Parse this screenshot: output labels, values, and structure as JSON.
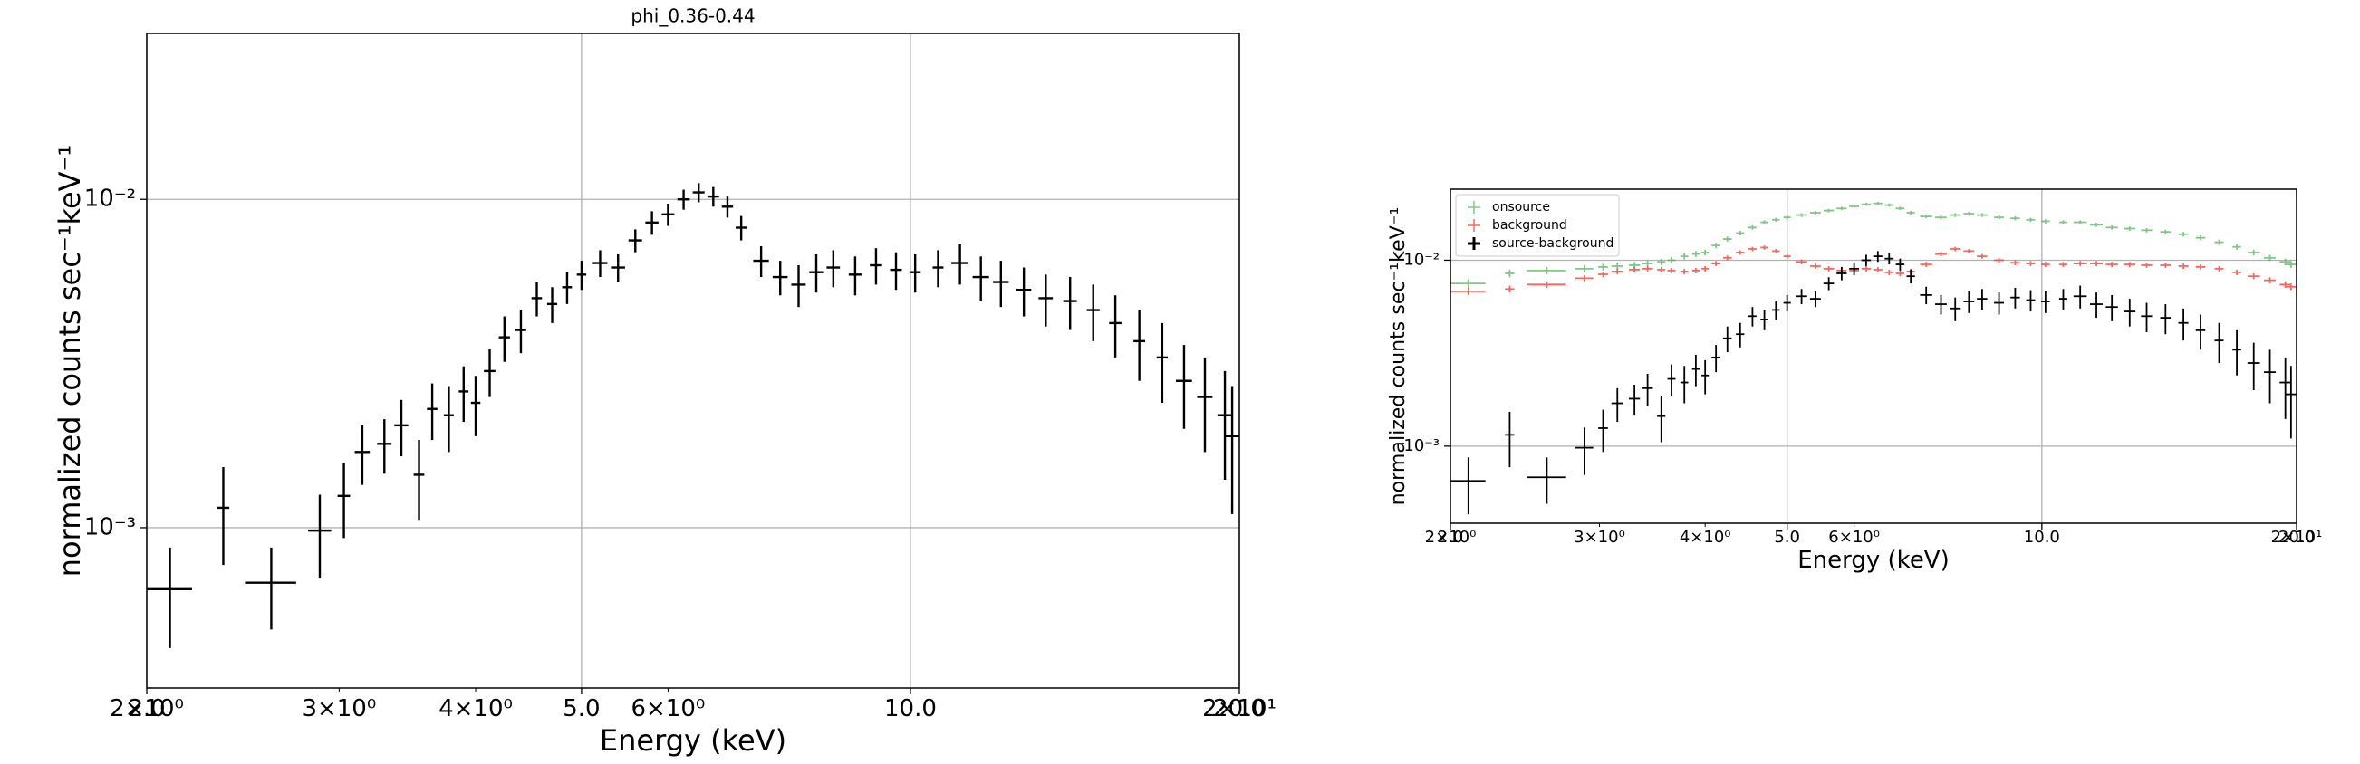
{
  "chart_data": [
    {
      "type": "errorbar",
      "title": "phi_0.36-0.44",
      "xlabel": "Energy (keV)",
      "ylabel": "normalized counts sec⁻¹keV⁻¹",
      "xscale": "log",
      "yscale": "log",
      "grid": true,
      "xlim": [
        2.0,
        20.0
      ],
      "ylim": [
        0.000325,
        0.032
      ],
      "xticks": [
        {
          "value": 2.0,
          "label": "2.0"
        },
        {
          "value": 5.0,
          "label": "5.0"
        },
        {
          "value": 10.0,
          "label": "10.0"
        },
        {
          "value": 20.0,
          "label": "20.0"
        }
      ],
      "xminorticks": [
        {
          "value": 2,
          "label": "2×10⁰"
        },
        {
          "value": 3,
          "label": "3×10⁰"
        },
        {
          "value": 4,
          "label": "4×10⁰"
        },
        {
          "value": 6,
          "label": "6×10⁰"
        },
        {
          "value": 20,
          "label": "2×10¹"
        }
      ],
      "yticks": [
        {
          "value": 0.001,
          "label": "10⁻³"
        },
        {
          "value": 0.01,
          "label": "10⁻²"
        }
      ],
      "x": [
        2.1,
        2.35,
        2.6,
        2.88,
        3.03,
        3.15,
        3.3,
        3.42,
        3.55,
        3.65,
        3.78,
        3.9,
        4.0,
        4.12,
        4.25,
        4.4,
        4.55,
        4.7,
        4.85,
        5.0,
        5.2,
        5.4,
        5.6,
        5.8,
        6.0,
        6.2,
        6.4,
        6.6,
        6.8,
        7.0,
        7.3,
        7.6,
        7.9,
        8.2,
        8.5,
        8.9,
        9.3,
        9.7,
        10.1,
        10.6,
        11.1,
        11.6,
        12.1,
        12.7,
        13.3,
        14.0,
        14.7,
        15.4,
        16.2,
        17.0,
        17.8,
        18.6,
        19.4,
        19.7
      ],
      "xerr": [
        0.1,
        0.03,
        0.14,
        0.07,
        0.04,
        0.05,
        0.05,
        0.05,
        0.04,
        0.04,
        0.04,
        0.04,
        0.04,
        0.05,
        0.05,
        0.05,
        0.05,
        0.05,
        0.05,
        0.05,
        0.08,
        0.08,
        0.08,
        0.08,
        0.08,
        0.08,
        0.08,
        0.08,
        0.08,
        0.08,
        0.12,
        0.12,
        0.12,
        0.12,
        0.12,
        0.12,
        0.12,
        0.12,
        0.12,
        0.12,
        0.2,
        0.2,
        0.2,
        0.2,
        0.2,
        0.2,
        0.2,
        0.2,
        0.2,
        0.2,
        0.3,
        0.3,
        0.3,
        0.3
      ],
      "series": [
        {
          "color": "#000000",
          "values": [
            0.00065,
            0.00115,
            0.00068,
            0.00098,
            0.00125,
            0.0017,
            0.0018,
            0.00205,
            0.00145,
            0.0023,
            0.0022,
            0.0026,
            0.0024,
            0.003,
            0.0038,
            0.004,
            0.005,
            0.0048,
            0.0054,
            0.0059,
            0.0064,
            0.0062,
            0.0075,
            0.0085,
            0.009,
            0.01,
            0.0105,
            0.0102,
            0.0095,
            0.0082,
            0.0065,
            0.0058,
            0.0055,
            0.006,
            0.0062,
            0.0059,
            0.0063,
            0.0061,
            0.006,
            0.0062,
            0.0064,
            0.0058,
            0.0056,
            0.0053,
            0.005,
            0.0049,
            0.0046,
            0.0042,
            0.0037,
            0.0033,
            0.0028,
            0.0025,
            0.0022,
            0.0019
          ],
          "errors": [
            0.00022,
            0.00038,
            0.00019,
            0.00028,
            0.00032,
            0.00035,
            0.00034,
            0.0004,
            0.0004,
            0.00045,
            0.0005,
            0.0005,
            0.0005,
            0.0005,
            0.0006,
            0.0006,
            0.0006,
            0.0006,
            0.0006,
            0.0006,
            0.0006,
            0.0006,
            0.0006,
            0.0007,
            0.0007,
            0.0007,
            0.0007,
            0.0007,
            0.0007,
            0.0007,
            0.0007,
            0.0007,
            0.0008,
            0.0008,
            0.0008,
            0.0008,
            0.0008,
            0.0008,
            0.0008,
            0.0008,
            0.0009,
            0.0009,
            0.0009,
            0.0009,
            0.0009,
            0.0009,
            0.0009,
            0.0009,
            0.0009,
            0.0009,
            0.0008,
            0.0008,
            0.0008,
            0.0008
          ]
        }
      ]
    },
    {
      "type": "errorbar",
      "xlabel": "Energy (keV)",
      "ylabel": "normalized counts sec⁻¹keV⁻¹",
      "xscale": "log",
      "yscale": "log",
      "grid": true,
      "legend": "upper left",
      "xlim": [
        2.0,
        20.0
      ],
      "ylim": [
        0.000385,
        0.0241
      ],
      "xticks": [
        {
          "value": 2.0,
          "label": "2.0"
        },
        {
          "value": 5.0,
          "label": "5.0"
        },
        {
          "value": 10.0,
          "label": "10.0"
        },
        {
          "value": 20.0,
          "label": "20.0"
        }
      ],
      "xminorticks": [
        {
          "value": 2,
          "label": "2×10⁰"
        },
        {
          "value": 3,
          "label": "3×10⁰"
        },
        {
          "value": 4,
          "label": "4×10⁰"
        },
        {
          "value": 6,
          "label": "6×10⁰"
        },
        {
          "value": 20,
          "label": "2×10¹"
        }
      ],
      "yticks": [
        {
          "value": 0.001,
          "label": "10⁻³"
        },
        {
          "value": 0.01,
          "label": "10⁻²"
        }
      ],
      "x": [
        2.1,
        2.35,
        2.6,
        2.88,
        3.03,
        3.15,
        3.3,
        3.42,
        3.55,
        3.65,
        3.78,
        3.9,
        4.0,
        4.12,
        4.25,
        4.4,
        4.55,
        4.7,
        4.85,
        5.0,
        5.2,
        5.4,
        5.6,
        5.8,
        6.0,
        6.2,
        6.4,
        6.6,
        6.8,
        7.0,
        7.3,
        7.6,
        7.9,
        8.2,
        8.5,
        8.9,
        9.3,
        9.7,
        10.1,
        10.6,
        11.1,
        11.6,
        12.1,
        12.7,
        13.3,
        14.0,
        14.7,
        15.4,
        16.2,
        17.0,
        17.8,
        18.6,
        19.4,
        19.7
      ],
      "xerr": [
        0.1,
        0.03,
        0.14,
        0.07,
        0.04,
        0.05,
        0.05,
        0.05,
        0.04,
        0.04,
        0.04,
        0.04,
        0.04,
        0.05,
        0.05,
        0.05,
        0.05,
        0.05,
        0.05,
        0.05,
        0.08,
        0.08,
        0.08,
        0.08,
        0.08,
        0.08,
        0.08,
        0.08,
        0.08,
        0.08,
        0.12,
        0.12,
        0.12,
        0.12,
        0.12,
        0.12,
        0.12,
        0.12,
        0.12,
        0.12,
        0.2,
        0.2,
        0.2,
        0.2,
        0.2,
        0.2,
        0.2,
        0.2,
        0.2,
        0.2,
        0.3,
        0.3,
        0.3,
        0.3
      ],
      "series": [
        {
          "name": "onsource",
          "color": "#4caf50",
          "alpha": 0.7,
          "values": [
            0.0075,
            0.0085,
            0.0088,
            0.009,
            0.0092,
            0.0093,
            0.0094,
            0.0096,
            0.0098,
            0.01,
            0.0105,
            0.0108,
            0.011,
            0.012,
            0.013,
            0.014,
            0.015,
            0.016,
            0.0165,
            0.017,
            0.0175,
            0.018,
            0.0185,
            0.019,
            0.0195,
            0.02,
            0.0202,
            0.0198,
            0.019,
            0.018,
            0.0172,
            0.017,
            0.0175,
            0.0178,
            0.0175,
            0.017,
            0.0168,
            0.0165,
            0.0162,
            0.016,
            0.016,
            0.0155,
            0.015,
            0.0148,
            0.0145,
            0.0142,
            0.0138,
            0.0132,
            0.0125,
            0.0118,
            0.011,
            0.0103,
            0.0098,
            0.0095
          ],
          "errors": [
            0.0004,
            0.0004,
            0.0004,
            0.0004,
            0.0004,
            0.0004,
            0.0004,
            0.0004,
            0.0004,
            0.0004,
            0.0004,
            0.0004,
            0.0004,
            0.0004,
            0.0004,
            0.0004,
            0.0004,
            0.0004,
            0.0004,
            0.0004,
            0.0004,
            0.0004,
            0.0004,
            0.0004,
            0.0004,
            0.0004,
            0.0004,
            0.0004,
            0.0004,
            0.0004,
            0.0004,
            0.0004,
            0.0004,
            0.0004,
            0.0004,
            0.0004,
            0.0004,
            0.0004,
            0.0004,
            0.0004,
            0.0004,
            0.0004,
            0.0004,
            0.0004,
            0.0004,
            0.0004,
            0.0004,
            0.0004,
            0.0004,
            0.0004,
            0.0004,
            0.0004,
            0.0004,
            0.0004
          ]
        },
        {
          "name": "background",
          "color": "#f44336",
          "alpha": 0.8,
          "values": [
            0.0068,
            0.007,
            0.0074,
            0.008,
            0.0084,
            0.0087,
            0.0089,
            0.009,
            0.0089,
            0.0088,
            0.0087,
            0.0088,
            0.009,
            0.0096,
            0.0103,
            0.011,
            0.0115,
            0.0117,
            0.0112,
            0.0105,
            0.0098,
            0.0093,
            0.009,
            0.0088,
            0.0088,
            0.009,
            0.0089,
            0.0086,
            0.0085,
            0.0087,
            0.0095,
            0.0108,
            0.0115,
            0.0112,
            0.0105,
            0.01,
            0.0097,
            0.0096,
            0.0095,
            0.0095,
            0.0096,
            0.0096,
            0.0095,
            0.0095,
            0.0094,
            0.0094,
            0.0093,
            0.0092,
            0.009,
            0.0086,
            0.0082,
            0.0078,
            0.0074,
            0.0072
          ],
          "errors": [
            0.0003,
            0.0003,
            0.0003,
            0.0003,
            0.0003,
            0.0003,
            0.0003,
            0.0003,
            0.0003,
            0.0003,
            0.0003,
            0.0003,
            0.0003,
            0.0003,
            0.0003,
            0.0003,
            0.0003,
            0.0003,
            0.0003,
            0.0003,
            0.0003,
            0.0003,
            0.0003,
            0.0003,
            0.0003,
            0.0003,
            0.0003,
            0.0003,
            0.0003,
            0.0003,
            0.0003,
            0.0003,
            0.0003,
            0.0003,
            0.0003,
            0.0003,
            0.0003,
            0.0003,
            0.0003,
            0.0003,
            0.0003,
            0.0003,
            0.0003,
            0.0003,
            0.0003,
            0.0003,
            0.0003,
            0.0003,
            0.0003,
            0.0003,
            0.0003,
            0.0003,
            0.0003,
            0.0003
          ]
        },
        {
          "name": "source-background",
          "color": "#000000",
          "alpha": 1,
          "values": [
            0.00065,
            0.00115,
            0.00068,
            0.00098,
            0.00125,
            0.0017,
            0.0018,
            0.00205,
            0.00145,
            0.0023,
            0.0022,
            0.0026,
            0.0024,
            0.003,
            0.0038,
            0.004,
            0.005,
            0.0048,
            0.0054,
            0.0059,
            0.0064,
            0.0062,
            0.0075,
            0.0085,
            0.009,
            0.01,
            0.0105,
            0.0102,
            0.0095,
            0.0082,
            0.0065,
            0.0058,
            0.0055,
            0.006,
            0.0062,
            0.0059,
            0.0063,
            0.0061,
            0.006,
            0.0062,
            0.0064,
            0.0058,
            0.0056,
            0.0053,
            0.005,
            0.0049,
            0.0046,
            0.0042,
            0.0037,
            0.0033,
            0.0028,
            0.0025,
            0.0022,
            0.0019
          ],
          "errors": [
            0.00022,
            0.00038,
            0.00019,
            0.00028,
            0.00032,
            0.00035,
            0.00034,
            0.0004,
            0.0004,
            0.00045,
            0.0005,
            0.0005,
            0.0005,
            0.0005,
            0.0006,
            0.0006,
            0.0006,
            0.0006,
            0.0006,
            0.0006,
            0.0006,
            0.0006,
            0.0006,
            0.0007,
            0.0007,
            0.0007,
            0.0007,
            0.0007,
            0.0007,
            0.0007,
            0.0007,
            0.0007,
            0.0008,
            0.0008,
            0.0008,
            0.0008,
            0.0008,
            0.0008,
            0.0008,
            0.0008,
            0.0009,
            0.0009,
            0.0009,
            0.0009,
            0.0009,
            0.0009,
            0.0009,
            0.0009,
            0.0009,
            0.0009,
            0.0008,
            0.0008,
            0.0008,
            0.0008
          ]
        }
      ]
    }
  ]
}
